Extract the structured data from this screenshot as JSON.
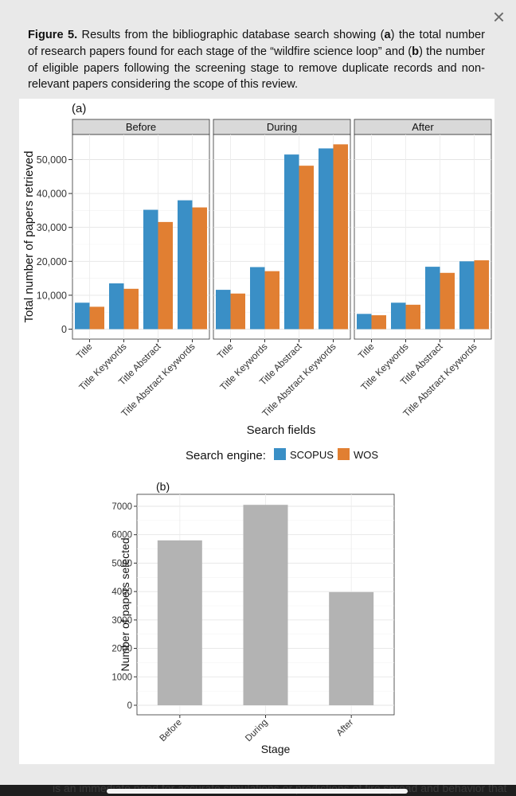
{
  "close_label": "×",
  "caption": {
    "figure_label": "Figure 5.",
    "text_1": " Results from the bibliographic database search showing (",
    "a_letter": "a",
    "text_2": ") the total number of research papers found for each stage of the “wildfire science loop” and (",
    "b_letter": "b",
    "text_3": ") the number of eligible papers following the screening stage to remove duplicate records and non-relevant papers considering the scope of this review."
  },
  "colors": {
    "scopus": "#3a8fc6",
    "wos": "#e17f32",
    "gray_bar": "#b3b3b3",
    "strip": "#d9d9d9"
  },
  "chart_data": [
    {
      "type": "bar",
      "panel_label": "(a)",
      "facets": [
        "Before",
        "During",
        "After"
      ],
      "categories": [
        "Title",
        "Title Keywords",
        "Title Abstract",
        "Title Abstract Keywords"
      ],
      "series": [
        {
          "name": "SCOPUS",
          "values": {
            "Before": [
              7800,
              13500,
              35200,
              38000
            ],
            "During": [
              11600,
              18300,
              51500,
              53300
            ],
            "After": [
              4500,
              7800,
              18400,
              20000
            ]
          }
        },
        {
          "name": "WOS",
          "values": {
            "Before": [
              6600,
              11900,
              31600,
              35900
            ],
            "During": [
              10500,
              17100,
              48200,
              54500
            ],
            "After": [
              4100,
              7200,
              16600,
              20300
            ]
          }
        }
      ],
      "ylim": [
        0,
        57200
      ],
      "yticks": [
        0,
        10000,
        20000,
        30000,
        40000,
        50000
      ],
      "ytick_labels": [
        "0",
        "10,000",
        "20,000",
        "30,000",
        "40,000",
        "50,000"
      ],
      "xlabel": "Search fields",
      "ylabel": "Total number of papers retrieved",
      "legend_title": "Search engine:",
      "legend_entries": [
        "SCOPUS",
        "WOS"
      ]
    },
    {
      "type": "bar",
      "panel_label": "(b)",
      "categories": [
        "Before",
        "During",
        "After"
      ],
      "values": [
        5800,
        7050,
        3980
      ],
      "ylim": [
        0,
        7300
      ],
      "yticks": [
        0,
        1000,
        2000,
        3000,
        4000,
        5000,
        6000,
        7000
      ],
      "ytick_labels": [
        "0",
        "1000",
        "2000",
        "3000",
        "4000",
        "5000",
        "6000",
        "7000"
      ],
      "xlabel": "Stage",
      "ylabel": "Number of papers selected"
    }
  ],
  "page_footer_text": "is an immediate need for accurate simulations or predictions of fire spread and behavior that"
}
